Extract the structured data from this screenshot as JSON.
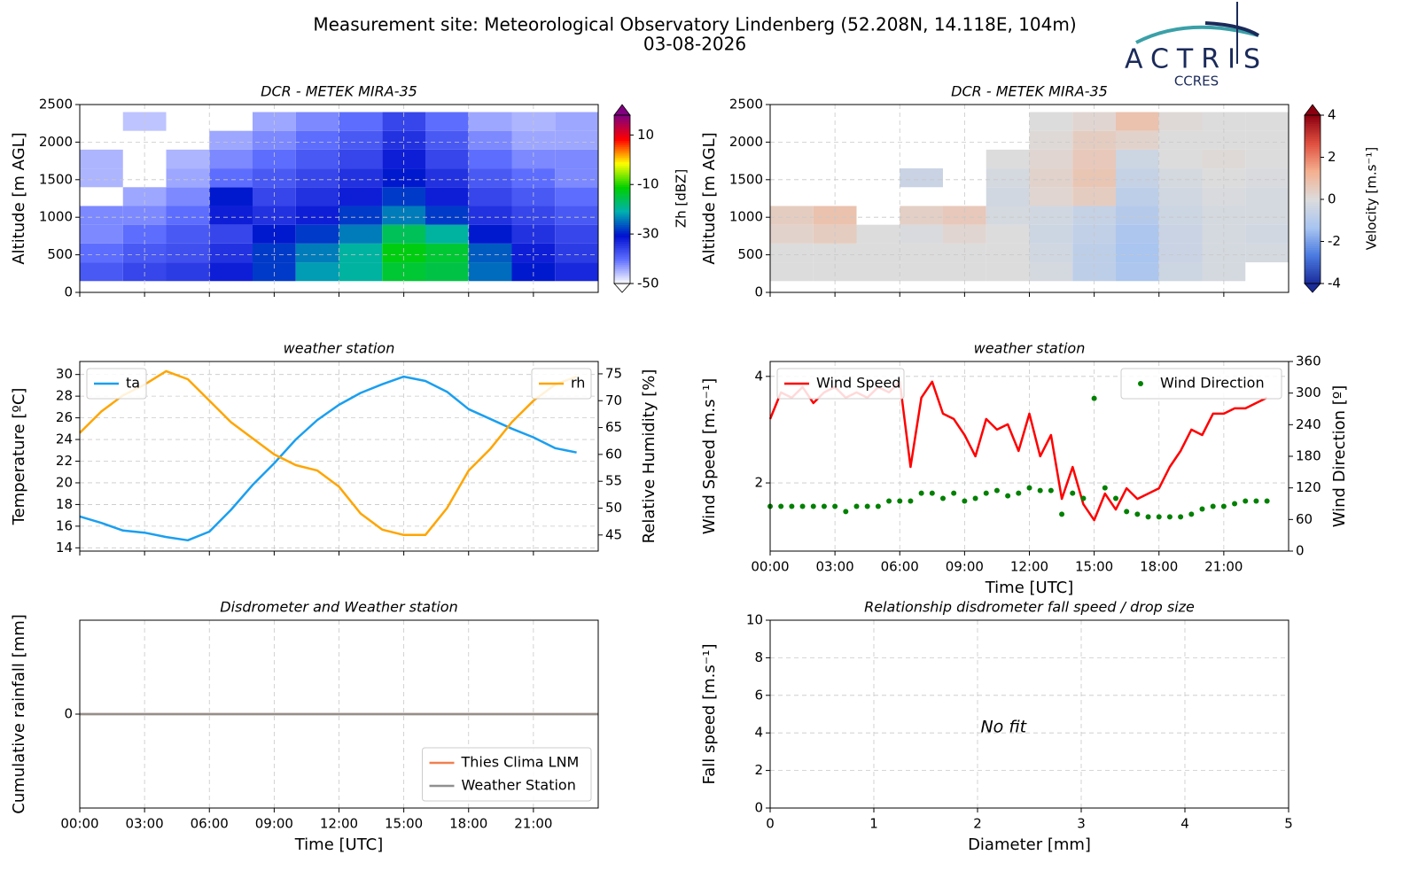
{
  "header": {
    "title": "Measurement site: Meteorological Observatory Lindenberg (52.208N, 14.118E, 104m)",
    "date": "03-08-2026",
    "logo": "ACTRIS",
    "logo_sub": "CCRES"
  },
  "chart_data": [
    {
      "type": "heatmap",
      "title": "DCR - METEK MIRA-35",
      "ylabel": "Altitude [m AGL]",
      "zlabel": "Zh [dBZ]",
      "xlim": [
        0,
        24
      ],
      "xticks": [
        0,
        3,
        6,
        9,
        12,
        15,
        18,
        21
      ],
      "xtick_labels": false,
      "ylim": [
        0,
        2500
      ],
      "yticks": [
        0,
        500,
        1000,
        1500,
        2000,
        2500
      ],
      "grid": true,
      "zlim": [
        -50,
        18
      ],
      "zticks": [
        -50,
        -30,
        -10,
        10
      ],
      "colormap": [
        "#ffffff",
        "#6070ff",
        "#0010d0",
        "#00b0b0",
        "#00d000",
        "#ffff00",
        "#ff0000",
        "#800080"
      ],
      "x": [
        0,
        2,
        4,
        6,
        8,
        10,
        12,
        14,
        16,
        18,
        20,
        22
      ],
      "y": [
        150,
        400,
        650,
        900,
        1150,
        1400,
        1650,
        1900,
        2150
      ],
      "z": [
        [
          -38,
          -36,
          -35,
          -32,
          -28,
          -22,
          -20,
          -14,
          -15,
          -25,
          -30,
          -33
        ],
        [
          -40,
          -38,
          -37,
          -34,
          -28,
          -24,
          -20,
          -12,
          -14,
          -26,
          -32,
          -35
        ],
        [
          -42,
          -40,
          -38,
          -36,
          -30,
          -28,
          -24,
          -16,
          -20,
          -30,
          -34,
          -36
        ],
        [
          -42,
          -42,
          -40,
          -32,
          -34,
          -32,
          -28,
          -24,
          -28,
          -34,
          -36,
          -38
        ],
        [
          null,
          -44,
          -42,
          -30,
          -36,
          -34,
          -32,
          -28,
          -32,
          -36,
          -38,
          -40
        ],
        [
          -45,
          null,
          -44,
          -40,
          -38,
          -36,
          -34,
          -30,
          -34,
          -38,
          -40,
          -42
        ],
        [
          -45,
          null,
          -45,
          -42,
          -40,
          -38,
          -36,
          -32,
          -36,
          -40,
          -42,
          -42
        ],
        [
          null,
          null,
          null,
          -44,
          -42,
          -40,
          -38,
          -34,
          -38,
          -42,
          -44,
          -44
        ],
        [
          null,
          -46,
          null,
          null,
          -44,
          -42,
          -40,
          -36,
          -40,
          -44,
          -45,
          -44
        ]
      ]
    },
    {
      "type": "heatmap",
      "title": "DCR - METEK MIRA-35",
      "ylabel": "Altitude [m AGL]",
      "zlabel": "Velocity [m.s⁻¹]",
      "xlim": [
        0,
        24
      ],
      "xticks": [
        0,
        3,
        6,
        9,
        12,
        15,
        18,
        21
      ],
      "xtick_labels": false,
      "ylim": [
        0,
        2500
      ],
      "yticks": [
        0,
        500,
        1000,
        1500,
        2000,
        2500
      ],
      "grid": true,
      "zlim": [
        -4,
        4
      ],
      "zticks": [
        -4,
        -2,
        0,
        2,
        4
      ],
      "colormap": [
        "#1a2b9a",
        "#4a7ae0",
        "#a8c4f0",
        "#dcdcdc",
        "#f4b090",
        "#e05040",
        "#8b0010"
      ],
      "x": [
        0,
        2,
        4,
        6,
        8,
        10,
        12,
        14,
        16,
        18,
        20,
        22
      ],
      "y": [
        150,
        400,
        650,
        900,
        1150,
        1400,
        1650,
        1900,
        2150
      ],
      "z": [
        [
          0,
          0,
          0,
          0,
          0,
          0,
          -0.2,
          -0.8,
          -1.2,
          -0.4,
          -0.2,
          null
        ],
        [
          0,
          0,
          0,
          0,
          0,
          0,
          -0.3,
          -0.8,
          -1.3,
          -0.5,
          -0.2,
          -0.2
        ],
        [
          0.3,
          0.5,
          0,
          -0.1,
          0.2,
          0,
          -0.4,
          -0.7,
          -1.2,
          -0.5,
          -0.2,
          -0.3
        ],
        [
          0.5,
          0.8,
          null,
          0.4,
          0.6,
          -0.2,
          -0.3,
          -0.6,
          -1,
          -0.4,
          -0.2,
          -0.2
        ],
        [
          null,
          null,
          null,
          null,
          null,
          -0.3,
          0.2,
          0.5,
          -0.8,
          -0.3,
          -0.1,
          -0.2
        ],
        [
          null,
          null,
          null,
          -0.5,
          null,
          -0.2,
          0.3,
          0.7,
          -0.6,
          -0.2,
          0,
          -0.1
        ],
        [
          null,
          null,
          null,
          null,
          null,
          0,
          0.2,
          0.6,
          -0.4,
          0,
          0.1,
          0
        ],
        [
          null,
          null,
          null,
          null,
          null,
          null,
          0.1,
          0.5,
          0.3,
          0,
          0,
          0
        ],
        [
          null,
          null,
          null,
          null,
          null,
          null,
          0,
          0.2,
          0.8,
          0.1,
          0,
          0
        ]
      ]
    },
    {
      "type": "line",
      "title": "weather station",
      "ylabel": "Temperature [ºC]",
      "y2label": "Relative Humidity [%]",
      "xlim": [
        0,
        24
      ],
      "xticks": [
        0,
        3,
        6,
        9,
        12,
        15,
        18,
        21
      ],
      "xtick_labels": false,
      "ylim": [
        13.7,
        31.2
      ],
      "yticks": [
        14,
        16,
        18,
        20,
        22,
        24,
        26,
        28,
        30
      ],
      "y2lim": [
        42,
        77.3
      ],
      "y2ticks": [
        45,
        50,
        55,
        60,
        65,
        70,
        75
      ],
      "grid": true,
      "x": [
        0,
        1,
        2,
        3,
        4,
        5,
        6,
        7,
        8,
        9,
        10,
        11,
        12,
        13,
        14,
        15,
        16,
        17,
        18,
        19,
        20,
        21,
        22,
        23
      ],
      "series": [
        {
          "name": "ta",
          "color": "#1a9ff0",
          "legend": "upper left",
          "values": [
            16.9,
            16.3,
            15.6,
            15.4,
            15.0,
            14.7,
            15.5,
            17.5,
            19.8,
            21.8,
            24.0,
            25.8,
            27.2,
            28.3,
            29.1,
            29.8,
            29.4,
            28.4,
            26.8,
            25.9,
            25.0,
            24.2,
            23.2,
            22.8
          ]
        },
        {
          "name": "rh",
          "color": "#ffa500",
          "axis": "y2",
          "legend": "upper right",
          "values": [
            64,
            68,
            71,
            73,
            75.5,
            74,
            70,
            66,
            63,
            60,
            58,
            57,
            54,
            49,
            46,
            45,
            45,
            50,
            57,
            61,
            66,
            70,
            73,
            74.5
          ]
        }
      ]
    },
    {
      "type": "line",
      "title": "weather station",
      "xlabel": "Time [UTC]",
      "ylabel": "Wind Speed [m.s⁻¹]",
      "y2label": "Wind Direction [º]",
      "xlim": [
        0,
        24
      ],
      "xticks": [
        {
          "value": 0,
          "label": "00:00"
        },
        {
          "value": 3,
          "label": "03:00"
        },
        {
          "value": 6,
          "label": "06:00"
        },
        {
          "value": 9,
          "label": "09:00"
        },
        {
          "value": 12,
          "label": "12:00"
        },
        {
          "value": 15,
          "label": "15:00"
        },
        {
          "value": 18,
          "label": "18:00"
        },
        {
          "value": 21,
          "label": "21:00"
        }
      ],
      "ylim": [
        0.72,
        4.28
      ],
      "yticks": [
        2,
        4
      ],
      "y2lim": [
        0,
        360
      ],
      "y2ticks": [
        0,
        60,
        120,
        180,
        240,
        300,
        360
      ],
      "grid": true,
      "x": [
        0,
        0.5,
        1,
        1.5,
        2,
        2.5,
        3,
        3.5,
        4,
        4.5,
        5,
        5.5,
        6,
        6.5,
        7,
        7.5,
        8,
        8.5,
        9,
        9.5,
        10,
        10.5,
        11,
        11.5,
        12,
        12.5,
        13,
        13.5,
        14,
        14.5,
        15,
        15.5,
        16,
        16.5,
        17,
        17.5,
        18,
        18.5,
        19,
        19.5,
        20,
        20.5,
        21,
        21.5,
        22,
        22.5,
        23
      ],
      "series": [
        {
          "name": "Wind Speed",
          "color": "#ff0000",
          "legend": "upper left",
          "values": [
            3.2,
            3.7,
            3.6,
            3.8,
            3.5,
            3.7,
            3.8,
            3.6,
            3.7,
            3.6,
            3.8,
            3.7,
            3.9,
            2.3,
            3.6,
            3.9,
            3.3,
            3.2,
            2.9,
            2.5,
            3.2,
            3.0,
            3.1,
            2.6,
            3.3,
            2.5,
            2.9,
            1.7,
            2.3,
            1.6,
            1.3,
            1.8,
            1.5,
            1.9,
            1.7,
            1.8,
            1.9,
            2.3,
            2.6,
            3.0,
            2.9,
            3.3,
            3.3,
            3.4,
            3.4,
            3.5,
            3.6
          ]
        },
        {
          "name": "Wind Direction",
          "color": "#008000",
          "axis": "y2",
          "marker": "dot",
          "legend": "upper right",
          "values": [
            85,
            85,
            85,
            85,
            85,
            85,
            85,
            75,
            85,
            85,
            85,
            95,
            95,
            95,
            110,
            110,
            100,
            110,
            95,
            100,
            110,
            115,
            105,
            110,
            120,
            115,
            115,
            70,
            110,
            100,
            290,
            120,
            100,
            75,
            70,
            65,
            65,
            65,
            65,
            70,
            80,
            85,
            85,
            90,
            95,
            95,
            95
          ]
        }
      ]
    },
    {
      "type": "line",
      "title": "Disdrometer and Weather station",
      "xlabel": "Time [UTC]",
      "ylabel": "Cumulative rainfall [mm]",
      "xlim": [
        0,
        24
      ],
      "xticks": [
        {
          "value": 0,
          "label": "00:00"
        },
        {
          "value": 3,
          "label": "03:00"
        },
        {
          "value": 6,
          "label": "06:00"
        },
        {
          "value": 9,
          "label": "09:00"
        },
        {
          "value": 12,
          "label": "12:00"
        },
        {
          "value": 15,
          "label": "15:00"
        },
        {
          "value": 18,
          "label": "18:00"
        },
        {
          "value": 21,
          "label": "21:00"
        }
      ],
      "ylim": [
        -1,
        1
      ],
      "yticks": [
        0
      ],
      "grid": true,
      "x": [
        0,
        24
      ],
      "series": [
        {
          "name": "Thies Clima LNM",
          "color": "#f08050",
          "legend": "lower right",
          "values": [
            0,
            0
          ]
        },
        {
          "name": "Weather Station",
          "color": "#909090",
          "legend": "lower right",
          "values": [
            0,
            0
          ]
        }
      ]
    },
    {
      "type": "scatter",
      "title": "Relationship disdrometer fall speed / drop size",
      "xlabel": "Diameter [mm]",
      "ylabel": "Fall speed [m.s⁻¹]",
      "xlim": [
        0,
        5
      ],
      "xticks": [
        0,
        1,
        2,
        3,
        4,
        5
      ],
      "ylim": [
        0,
        10
      ],
      "yticks": [
        0,
        2,
        4,
        6,
        8,
        10
      ],
      "grid": true,
      "annotations": [
        {
          "text": "No fit",
          "x": 2.25,
          "y": 4.3
        }
      ]
    }
  ]
}
